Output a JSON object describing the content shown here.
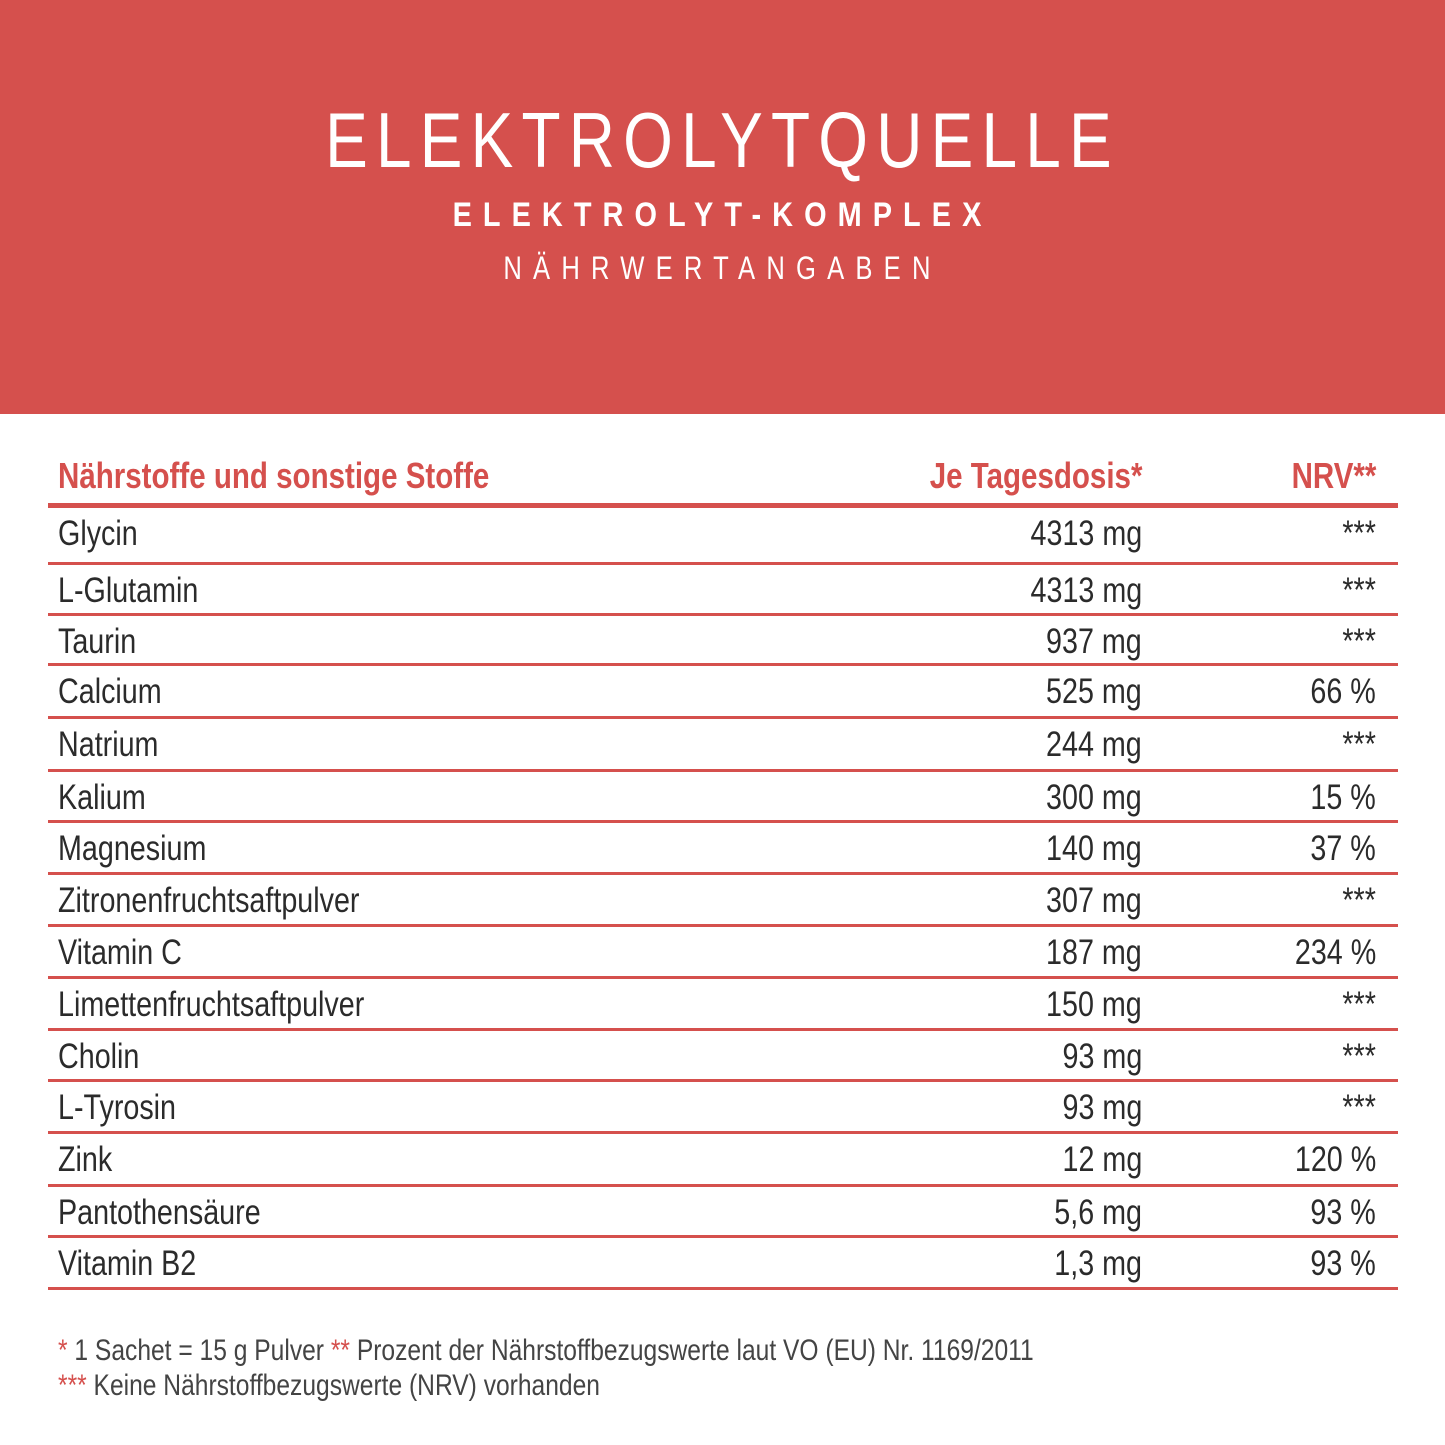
{
  "header": {
    "title": "ELEKTROLYTQUELLE",
    "subtitle": "ELEKTROLYT-KOMPLEX",
    "section": "NÄHRWERTANGABEN"
  },
  "table": {
    "columns": [
      "Nährstoffe und sonstige Stoffe",
      "Je Tagesdosis*",
      "NRV**"
    ],
    "rows": [
      {
        "name": "Glycin",
        "amount": "4313 mg",
        "nrv": "***"
      },
      {
        "name": "L-Glutamin",
        "amount": "4313 mg",
        "nrv": "***"
      },
      {
        "name": "Taurin",
        "amount": "937 mg",
        "nrv": "***"
      },
      {
        "name": "Calcium",
        "amount": "525 mg",
        "nrv": "66 %"
      },
      {
        "name": "Natrium",
        "amount": "244 mg",
        "nrv": "***"
      },
      {
        "name": "Kalium",
        "amount": "300 mg",
        "nrv": "15 %"
      },
      {
        "name": "Magnesium",
        "amount": "140 mg",
        "nrv": "37 %"
      },
      {
        "name": "Zitronenfruchtsaftpulver",
        "amount": "307 mg",
        "nrv": "***"
      },
      {
        "name": "Vitamin C",
        "amount": "187 mg",
        "nrv": "234 %"
      },
      {
        "name": "Limettenfruchtsaftpulver",
        "amount": "150 mg",
        "nrv": "***"
      },
      {
        "name": "Cholin",
        "amount": "93 mg",
        "nrv": "***"
      },
      {
        "name": "L-Tyrosin",
        "amount": "93 mg",
        "nrv": "***"
      },
      {
        "name": "Zink",
        "amount": "12 mg",
        "nrv": "120 %"
      },
      {
        "name": "Pantothensäure",
        "amount": "5,6 mg",
        "nrv": "93 %"
      },
      {
        "name": "Vitamin B2",
        "amount": "1,3 mg",
        "nrv": "93 %"
      }
    ]
  },
  "footnotes": {
    "m1": "*",
    "t1": " 1 Sachet = 15 g Pulver  ",
    "m2": "**",
    "t2": " Prozent der Nährstoffbezugswerte laut VO (EU) Nr. 1169/2011",
    "m3": "***",
    "t3": " Keine Nährstoffbezugswerte (NRV) vorhanden"
  },
  "colors": {
    "accent": "#d5504d"
  }
}
